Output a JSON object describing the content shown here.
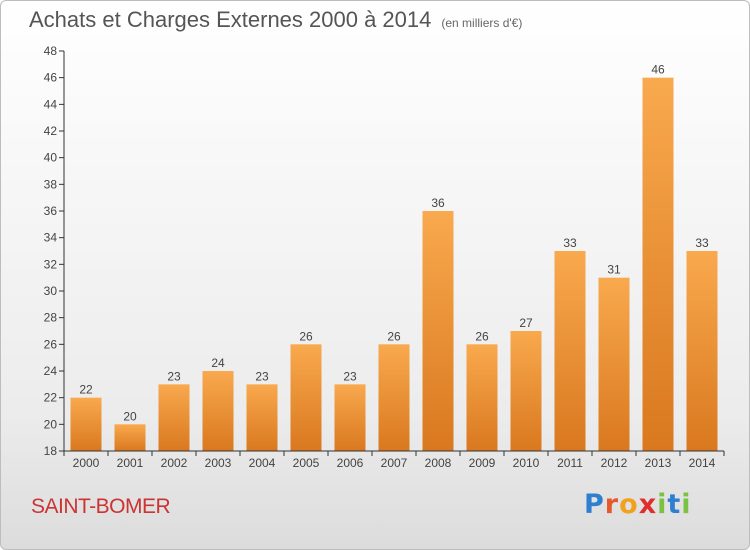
{
  "title": "Achats et Charges Externes 2000 à 2014",
  "unit": "(en milliers d'€)",
  "commune": "SAINT-BOMER",
  "logo": {
    "letters": [
      "P",
      "r",
      "o",
      "x",
      "i",
      "t",
      "i"
    ],
    "colors": [
      "#2f7fd1",
      "#e55a2b",
      "#f2a11c",
      "#e02e2e",
      "#7cc242",
      "#2f7fd1",
      "#7cc242"
    ]
  },
  "colors": {
    "bar_light": "#f9a94e",
    "bar_dark": "#d9781f",
    "axis": "#333333",
    "grid": "#cccccc"
  },
  "chart_data": {
    "type": "bar",
    "categories": [
      "2000",
      "2001",
      "2002",
      "2003",
      "2004",
      "2005",
      "2006",
      "2007",
      "2008",
      "2009",
      "2010",
      "2011",
      "2012",
      "2013",
      "2014"
    ],
    "values": [
      22,
      20,
      23,
      24,
      23,
      26,
      23,
      26,
      36,
      26,
      27,
      33,
      31,
      46,
      33
    ],
    "ylim": [
      18,
      48
    ],
    "yticks": [
      18,
      20,
      22,
      24,
      26,
      28,
      30,
      32,
      34,
      36,
      38,
      40,
      42,
      44,
      46,
      48
    ],
    "title": "Achats et Charges Externes 2000 à 2014",
    "xlabel": "",
    "ylabel": ""
  }
}
